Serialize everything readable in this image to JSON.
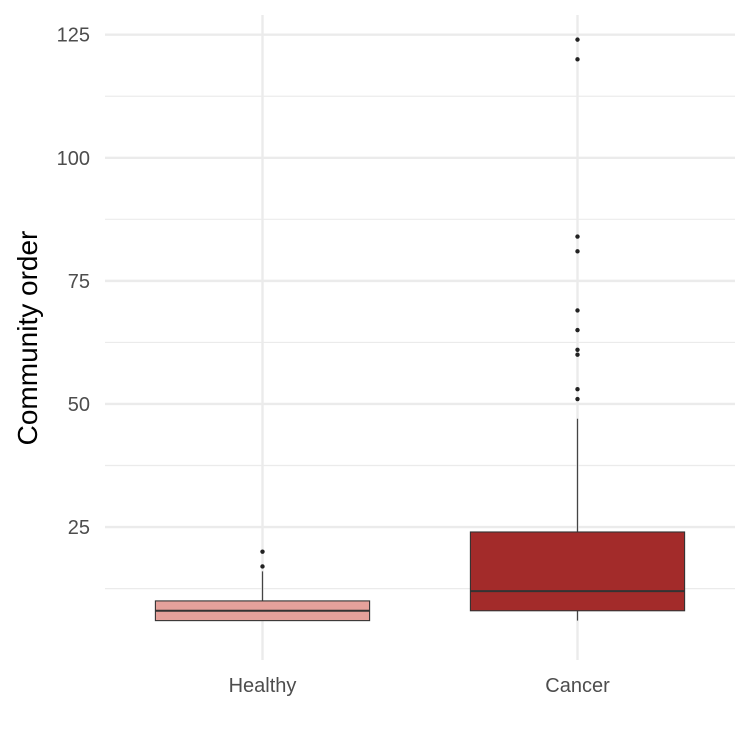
{
  "chart_data": {
    "type": "box",
    "title": "",
    "xlabel": "",
    "ylabel": "Community order",
    "ylim": [
      -2,
      129
    ],
    "yticks": [
      25,
      50,
      75,
      100,
      125
    ],
    "grid": true,
    "legend": "none",
    "categories": [
      "Healthy",
      "Cancer"
    ],
    "boxes": [
      {
        "category": "Healthy",
        "fill": "#e5a19b",
        "whisker_low": 6,
        "q1": 6,
        "median": 8,
        "q3": 10,
        "whisker_high": 16,
        "outliers": [
          17,
          20
        ]
      },
      {
        "category": "Cancer",
        "fill": "#a32b2a",
        "whisker_low": 6,
        "q1": 8,
        "median": 12,
        "q3": 24,
        "whisker_high": 47,
        "outliers": [
          51,
          53,
          60,
          61,
          65,
          69,
          81,
          84,
          120,
          124
        ]
      }
    ]
  }
}
